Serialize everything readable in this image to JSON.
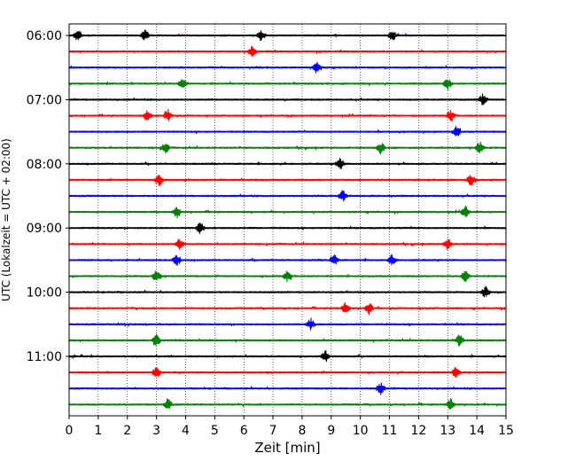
{
  "chart_data": {
    "type": "line",
    "title": "",
    "xlabel": "Zeit  [min]",
    "ylabel": "UTC (Lokalzeit = UTC + 02:00)",
    "xlim": [
      0,
      15
    ],
    "x_ticks": [
      "0",
      "1",
      "2",
      "3",
      "4",
      "5",
      "6",
      "7",
      "8",
      "9",
      "10",
      "11",
      "12",
      "13",
      "14",
      "15"
    ],
    "y_ticks": [
      "06:00",
      "07:00",
      "08:00",
      "09:00",
      "10:00",
      "11:00"
    ],
    "grid": "vertical dotted",
    "trace_interval_minutes": 15,
    "colors": [
      "#000000",
      "#ff0000",
      "#0000ff",
      "#008000"
    ],
    "traces": [
      {
        "start": "06:00",
        "color": "#000000",
        "events": [
          0.3,
          2.6,
          6.6,
          11.1
        ]
      },
      {
        "start": "06:15",
        "color": "#ff0000",
        "events": [
          6.3
        ]
      },
      {
        "start": "06:30",
        "color": "#0000ff",
        "events": [
          8.5
        ]
      },
      {
        "start": "06:45",
        "color": "#008000",
        "events": [
          3.9,
          13.0
        ]
      },
      {
        "start": "07:00",
        "color": "#000000",
        "events": [
          14.2
        ]
      },
      {
        "start": "07:15",
        "color": "#ff0000",
        "events": [
          2.7,
          3.4,
          13.1
        ]
      },
      {
        "start": "07:30",
        "color": "#0000ff",
        "events": [
          13.3
        ]
      },
      {
        "start": "07:45",
        "color": "#008000",
        "events": [
          3.3,
          10.7,
          14.1
        ]
      },
      {
        "start": "08:00",
        "color": "#000000",
        "events": [
          9.3
        ]
      },
      {
        "start": "08:15",
        "color": "#ff0000",
        "events": [
          3.1,
          13.8
        ]
      },
      {
        "start": "08:30",
        "color": "#0000ff",
        "events": [
          9.4
        ]
      },
      {
        "start": "08:45",
        "color": "#008000",
        "events": [
          3.7,
          13.6
        ]
      },
      {
        "start": "09:00",
        "color": "#000000",
        "events": [
          4.5
        ]
      },
      {
        "start": "09:15",
        "color": "#ff0000",
        "events": [
          3.8,
          13.0
        ]
      },
      {
        "start": "09:30",
        "color": "#0000ff",
        "events": [
          3.7,
          9.1,
          11.1
        ]
      },
      {
        "start": "09:45",
        "color": "#008000",
        "events": [
          3.0,
          7.5,
          13.6
        ]
      },
      {
        "start": "10:00",
        "color": "#000000",
        "events": [
          14.3
        ]
      },
      {
        "start": "10:15",
        "color": "#ff0000",
        "events": [
          9.5,
          10.3
        ]
      },
      {
        "start": "10:30",
        "color": "#0000ff",
        "events": [
          8.3
        ]
      },
      {
        "start": "10:45",
        "color": "#008000",
        "events": [
          3.0,
          13.4
        ]
      },
      {
        "start": "11:00",
        "color": "#000000",
        "events": [
          8.8
        ]
      },
      {
        "start": "11:15",
        "color": "#ff0000",
        "events": [
          3.0,
          13.3
        ]
      },
      {
        "start": "11:30",
        "color": "#0000ff",
        "events": [
          10.7
        ]
      },
      {
        "start": "11:45",
        "color": "#008000",
        "events": [
          3.4,
          13.1
        ]
      }
    ]
  }
}
